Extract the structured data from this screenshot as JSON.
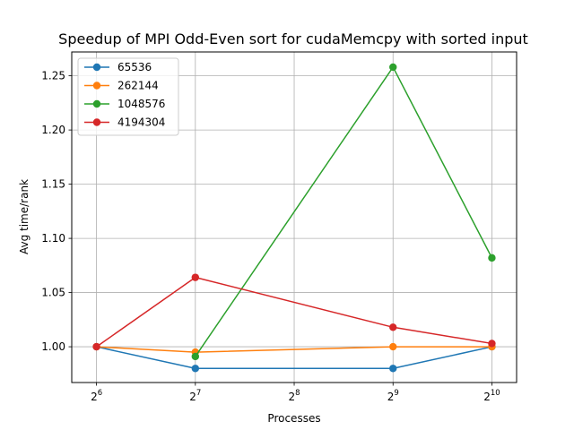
{
  "chart_data": {
    "type": "line",
    "title": "Speedup of MPI Odd-Even sort for cudaMemcpy with sorted input",
    "xlabel": "Processes",
    "ylabel": "Avg time/rank",
    "x_scale": "log2",
    "x_ticks": [
      {
        "value": 64,
        "base": "2",
        "exp": "6"
      },
      {
        "value": 128,
        "base": "2",
        "exp": "7"
      },
      {
        "value": 256,
        "base": "2",
        "exp": "8"
      },
      {
        "value": 512,
        "base": "2",
        "exp": "9"
      },
      {
        "value": 1024,
        "base": "2",
        "exp": "10"
      }
    ],
    "xlim": [
      53.8,
      1217.8
    ],
    "ylim": [
      0.967,
      1.272
    ],
    "y_ticks": [
      {
        "value": 1.0,
        "label": "1.00"
      },
      {
        "value": 1.05,
        "label": "1.05"
      },
      {
        "value": 1.1,
        "label": "1.10"
      },
      {
        "value": 1.15,
        "label": "1.15"
      },
      {
        "value": 1.2,
        "label": "1.20"
      },
      {
        "value": 1.25,
        "label": "1.25"
      }
    ],
    "grid": true,
    "legend_position": "top-left",
    "series": [
      {
        "name": "65536",
        "color": "#1f77b4",
        "x": [
          64,
          128,
          512,
          1024
        ],
        "y": [
          1.0,
          0.98,
          0.98,
          1.0
        ]
      },
      {
        "name": "262144",
        "color": "#ff7f0e",
        "x": [
          64,
          128,
          512,
          1024
        ],
        "y": [
          1.0,
          0.995,
          1.0,
          1.0
        ]
      },
      {
        "name": "1048576",
        "color": "#2ca02c",
        "x": [
          128,
          512,
          1024
        ],
        "y": [
          0.991,
          1.258,
          1.082
        ]
      },
      {
        "name": "4194304",
        "color": "#d62728",
        "x": [
          64,
          128,
          512,
          1024
        ],
        "y": [
          1.0,
          1.064,
          1.018,
          1.003
        ]
      }
    ]
  }
}
